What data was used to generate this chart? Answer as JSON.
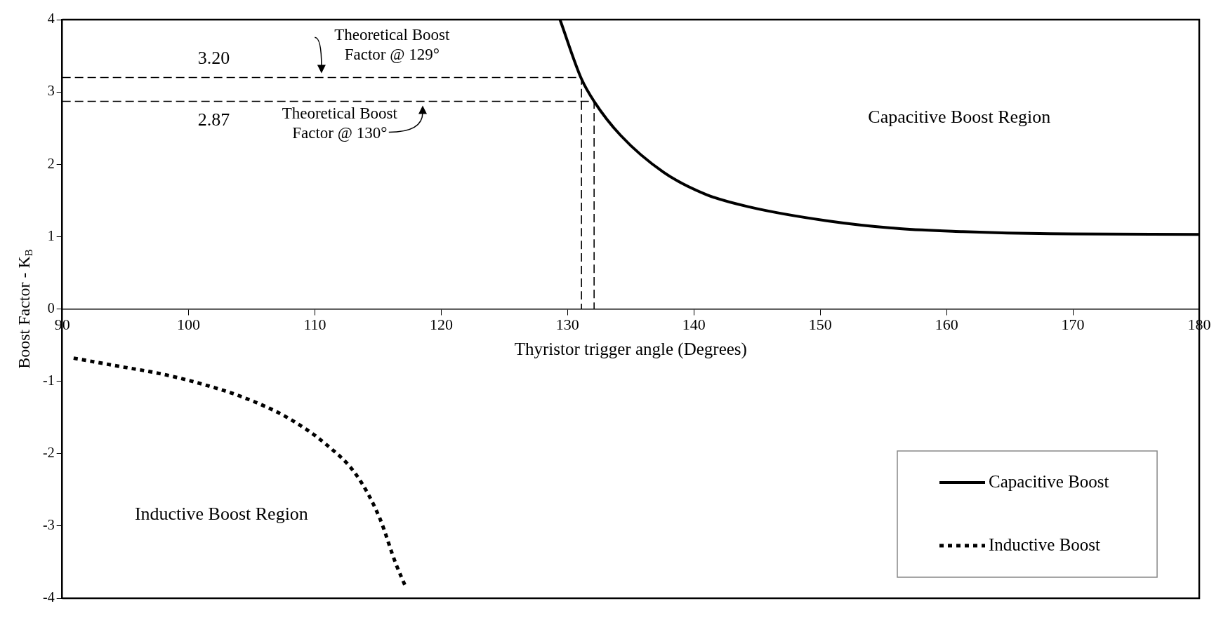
{
  "chart_data": {
    "type": "line",
    "xlabel": "Thyristor trigger angle (Degrees)",
    "ylabel": "Boost Factor - K$_{B}$",
    "xlim": [
      90,
      180
    ],
    "ylim": [
      -4,
      4
    ],
    "xticks": [
      90,
      100,
      110,
      120,
      130,
      140,
      150,
      160,
      170,
      180
    ],
    "yticks": [
      -4,
      -3,
      -2,
      -1,
      0,
      1,
      2,
      3,
      4
    ],
    "grid": false,
    "legend": "bottom right",
    "marker": "none",
    "series": [
      {
        "name": "Capacitive Boost",
        "color": "#000000",
        "line_style": "solid",
        "x": [
          129.4,
          131.1,
          132.1,
          134.2,
          137.6,
          141,
          144.4,
          150.5,
          156.3,
          161.3,
          168.2,
          180
        ],
        "values": [
          4,
          3.18,
          2.87,
          2.4,
          1.89,
          1.58,
          1.41,
          1.22,
          1.11,
          1.07,
          1.04,
          1.03
        ]
      },
      {
        "name": "Inductive Boost",
        "color": "#000000",
        "line_style": "dotted",
        "x": [
          90.9,
          94.4,
          97.9,
          101.1,
          104.3,
          107.8,
          110.8,
          113.3,
          115.1,
          116.4,
          117.2
        ],
        "values": [
          -0.68,
          -0.79,
          -0.9,
          -1.04,
          -1.22,
          -1.5,
          -1.86,
          -2.3,
          -2.88,
          -3.52,
          -3.85
        ]
      },
      {
        "color": "#000000",
        "line_style": "dashed",
        "x": [
          90,
          131.1,
          131.1
        ],
        "values": [
          3.2,
          3.2,
          0
        ]
      },
      {
        "color": "#000000",
        "line_style": "dashed",
        "x": [
          90,
          132.1,
          132.1
        ],
        "values": [
          2.87,
          2.87,
          0
        ]
      }
    ],
    "annotations": [
      {
        "text": "3.20",
        "x": 102,
        "y": 3.2
      },
      {
        "text": "2.87",
        "x": 102,
        "y": 2.87
      },
      "Theoretical Boost\nFactor @ 129°",
      "Theoretical Boost\nFactor @ 130°",
      "Capacitive Boost Region",
      "Inductive Boost Region"
    ]
  }
}
